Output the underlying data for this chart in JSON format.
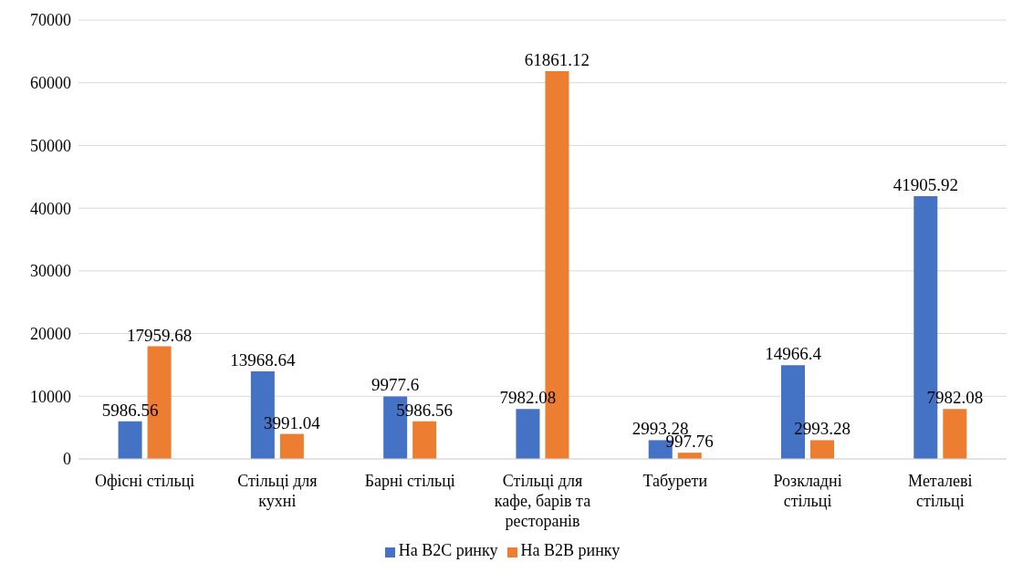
{
  "chart_data": {
    "type": "bar",
    "categories": [
      "Офісні стільці",
      "Стільці для кухні",
      "Барні стільці",
      "Стільці для кафе, барів та ресторанів",
      "Табурети",
      "Розкладні стільці",
      "Металеві стільці"
    ],
    "series": [
      {
        "name": "На B2C ринку",
        "color": "#4472c4",
        "values": [
          5986.56,
          13968.64,
          9977.6,
          7982.08,
          2993.28,
          14966.4,
          41905.92
        ]
      },
      {
        "name": "На B2B ринку",
        "color": "#ed7d31",
        "values": [
          17959.68,
          3991.04,
          5986.56,
          61861.12,
          997.76,
          2993.28,
          7982.08
        ]
      }
    ],
    "ylim": [
      0,
      70000
    ],
    "yticks": [
      0,
      10000,
      20000,
      30000,
      40000,
      50000,
      60000,
      70000
    ],
    "grid": "y",
    "legend": "bottom",
    "data_labels": true
  }
}
